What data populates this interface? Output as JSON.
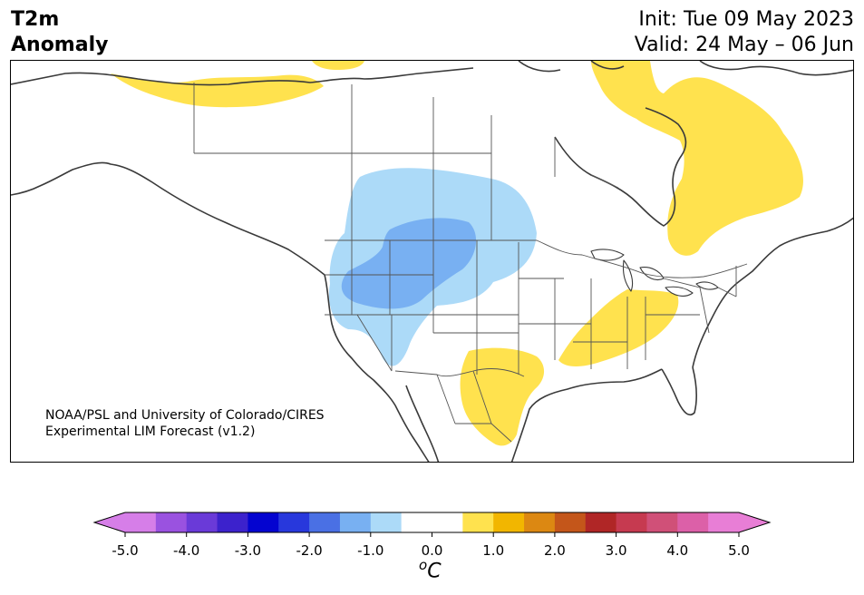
{
  "header": {
    "variable": "T2m",
    "field": "Anomaly",
    "init": "Init: Tue 09 May 2023",
    "valid": "Valid: 24 May – 06 Jun"
  },
  "credit": {
    "line1": "NOAA/PSL and University of Colorado/CIRES",
    "line2": "Experimental LIM Forecast (v1.2)"
  },
  "colorbar": {
    "unit_super": "o",
    "unit_main": "C",
    "ticks": [
      "-5.0",
      "-4.0",
      "-3.0",
      "-2.0",
      "-1.0",
      "0.0",
      "1.0",
      "2.0",
      "3.0",
      "4.0",
      "5.0"
    ],
    "min_color": "#d67ee8",
    "max_color": "#e87ed6",
    "colors": [
      "#d67ee8",
      "#9a52e0",
      "#6a3ad8",
      "#3c22cc",
      "#0404d0",
      "#2838dc",
      "#4a70e4",
      "#78b0f2",
      "#acdaf8",
      "#ffffff",
      "#ffffff",
      "#ffe24e",
      "#f2b600",
      "#dc8812",
      "#c4561a",
      "#b02626",
      "#c63a50",
      "#d05078",
      "#dc60a8",
      "#e87ed6"
    ]
  },
  "map": {
    "border_color": "#444444",
    "anomaly_colors": {
      "warm_1": "#ffe24e",
      "cool_1": "#acdaf8",
      "cool_2": "#78b0f2"
    }
  }
}
